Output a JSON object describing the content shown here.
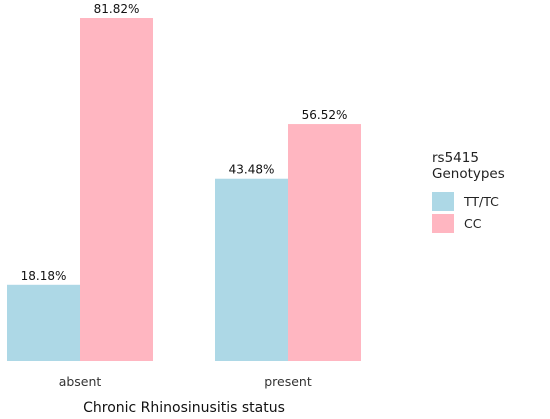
{
  "chart_data": {
    "type": "bar",
    "categories": [
      "absent",
      "present"
    ],
    "series": [
      {
        "name": "TT/TC",
        "values": [
          18.18,
          43.48
        ],
        "labels": [
          "18.18%",
          "43.48%"
        ],
        "color": "#add8e6"
      },
      {
        "name": "CC",
        "values": [
          81.82,
          56.52
        ],
        "labels": [
          "81.82%",
          "56.52%"
        ],
        "color": "#ffb6c1"
      }
    ],
    "xlabel": "Chronic Rhinosinusitis status",
    "ylabel": "",
    "ylim": [
      0,
      81.82
    ],
    "grid": false,
    "legend": {
      "title": "rs5415 Genotypes",
      "placement": "right"
    }
  }
}
